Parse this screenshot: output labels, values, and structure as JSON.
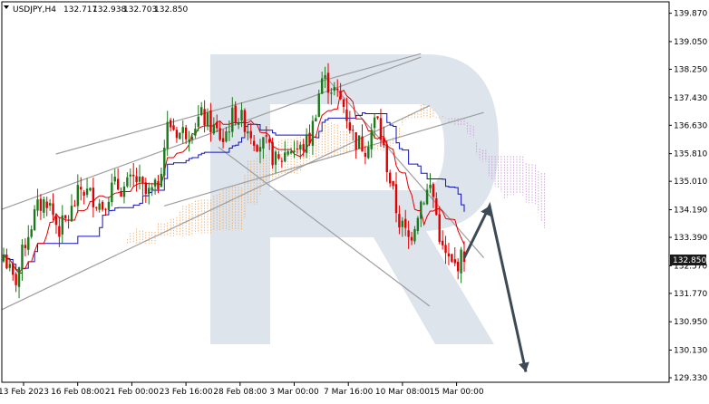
{
  "header": {
    "symbol": "USDJPY,H4",
    "open": "132.717",
    "high": "132.938",
    "low": "132.703",
    "close": "132.850"
  },
  "colors": {
    "bull_candle": "#1a7a1a",
    "bear_candle": "#e00000",
    "tenkan": "#e00000",
    "kijun": "#1010c0",
    "cloud": "#f2a55a",
    "cloud_dark": "#c890d8",
    "trendline": "#9e9e9e",
    "forecast_arrow": "#3d4a55",
    "price_label_bg": "#1a1a1a",
    "watermark": "#dde4ec"
  },
  "chart_data": {
    "type": "candlestick",
    "title": "USDJPY,H4",
    "ylim": [
      129.2,
      140.2
    ],
    "price_ticks": [
      "139.870",
      "139.050",
      "138.250",
      "137.430",
      "136.630",
      "135.810",
      "135.010",
      "134.190",
      "133.390",
      "132.570",
      "131.770",
      "130.950",
      "130.130",
      "129.330"
    ],
    "current_price": "132.850",
    "date_labels": [
      "13 Feb 2023",
      "16 Feb 08:00",
      "21 Feb 00:00",
      "23 Feb 16:00",
      "28 Feb 08:00",
      "3 Mar 00:00",
      "7 Mar 16:00",
      "10 Mar 08:00",
      "15 Mar 00:00"
    ],
    "close_path": [
      132.9,
      132.0,
      133.3,
      134.2,
      134.5,
      133.6,
      134.0,
      134.8,
      134.6,
      134.3,
      134.9,
      134.8,
      135.1,
      134.6,
      134.8,
      136.7,
      136.4,
      136.5,
      136.9,
      136.6,
      136.2,
      137.0,
      136.7,
      136.2,
      136.0,
      135.5,
      136.0,
      135.9,
      136.3,
      138.0,
      137.7,
      137.2,
      136.2,
      136.0,
      136.9,
      135.4,
      133.9,
      133.3,
      134.4,
      134.9,
      133.0,
      132.5,
      132.9
    ],
    "trendlines": [
      {
        "from": {
          "date": "13 Feb 2023",
          "price": 134.2
        },
        "to": {
          "date": "7 Mar 16:00",
          "price": 138.6
        }
      },
      {
        "from": {
          "date": "16 Feb 08:00",
          "price": 135.8
        },
        "to": {
          "date": "7 Mar 16:00",
          "price": 138.7
        }
      },
      {
        "from": {
          "date": "13 Feb 2023",
          "price": 131.3
        },
        "to": {
          "date": "10 Mar 08:00",
          "price": 137.2
        }
      },
      {
        "from": {
          "date": "23 Feb 16:00",
          "price": 134.3
        },
        "to": {
          "date": "15 Mar 00:00",
          "price": 137.0
        }
      },
      {
        "from": {
          "date": "7 Mar 16:00",
          "price": 138.0
        },
        "to": {
          "date": "15 Mar 00:00",
          "price": 132.8
        }
      },
      {
        "from": {
          "date": "28 Feb 08:00",
          "price": 136.0
        },
        "to": {
          "date": "10 Mar 08:00",
          "price": 131.4
        }
      }
    ],
    "forecast": [
      132.8,
      134.3,
      129.5
    ]
  }
}
